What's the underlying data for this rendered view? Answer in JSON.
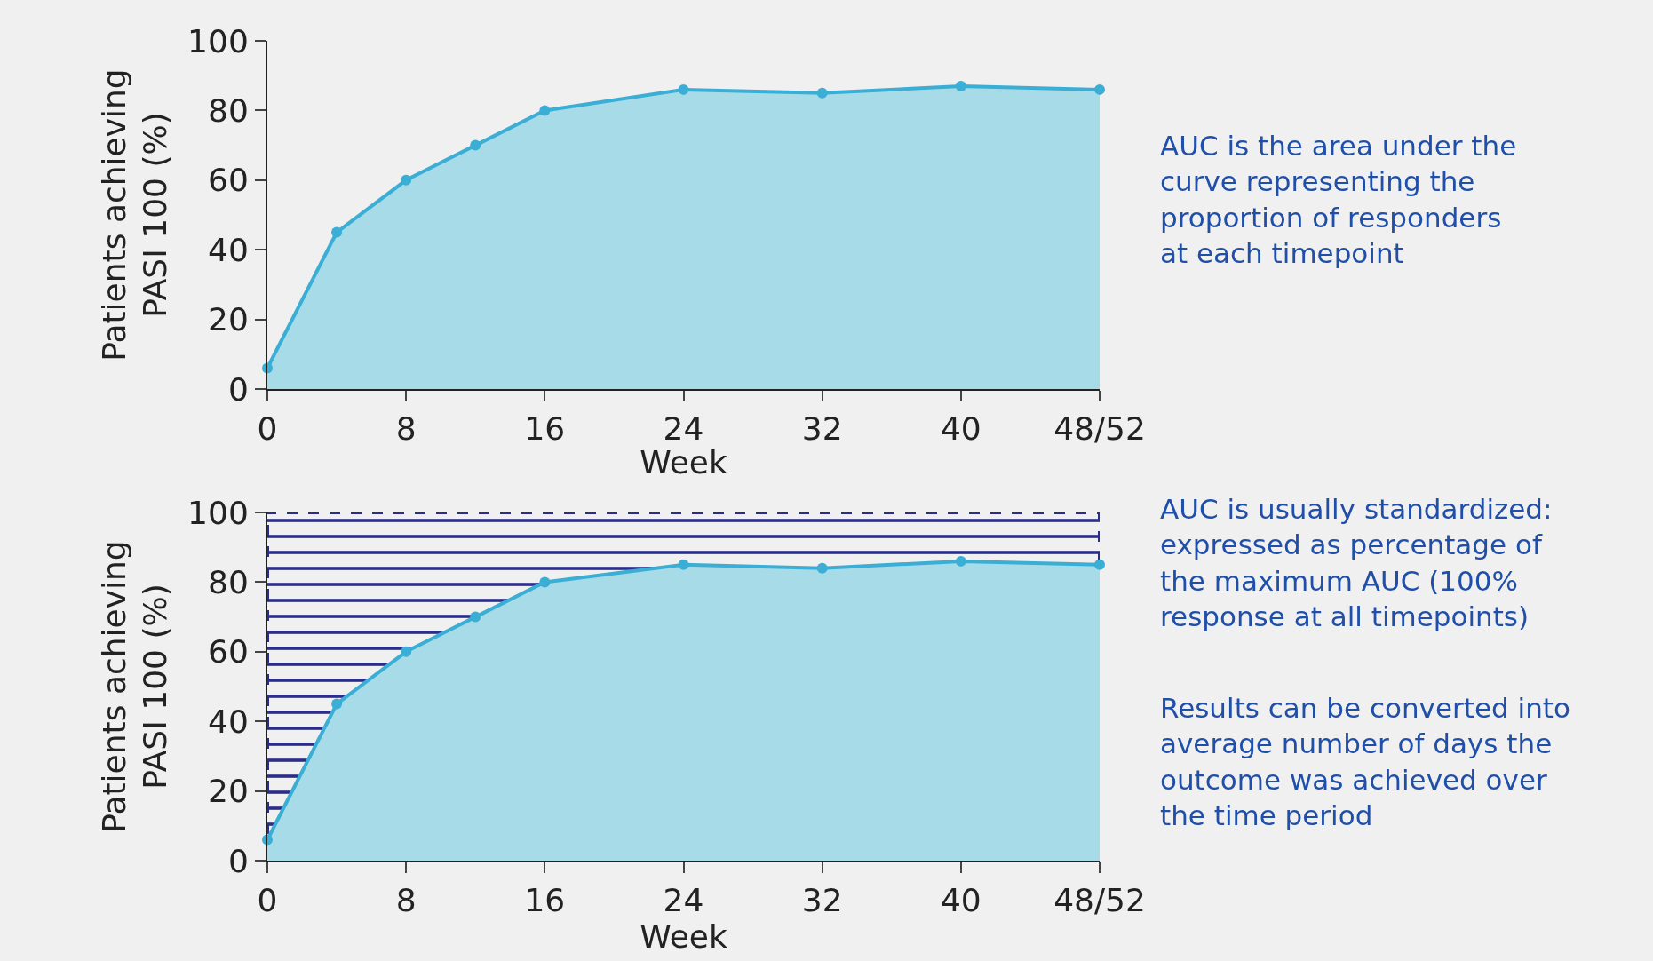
{
  "chart_data": [
    {
      "type": "area",
      "xlabel": "Week",
      "ylabel": "Patients achieving\nPASI 100 (%)",
      "x": [
        0,
        4,
        8,
        12,
        16,
        24,
        32,
        40,
        48
      ],
      "series": [
        {
          "color": "#3aaed4",
          "values": [
            6,
            45,
            60,
            70,
            80,
            86,
            85,
            87,
            86
          ]
        }
      ],
      "xlim": [
        0,
        48
      ],
      "xticks": [
        0,
        8,
        16,
        24,
        32,
        40,
        {
          "value": 48,
          "label": "48/52"
        }
      ],
      "ylim": [
        0,
        100
      ],
      "yticks": [
        0,
        20,
        40,
        60,
        80,
        100
      ],
      "marker": "circle",
      "grid": false,
      "annotations": [
        "AUC is the area under the\ncurve representing the\nproportion of responders\nat each timepoint"
      ]
    },
    {
      "type": "area",
      "xlabel": "Week",
      "ylabel": "Patients achieving\nPASI 100 (%)",
      "x": [
        0,
        4,
        8,
        12,
        16,
        24,
        32,
        40,
        48
      ],
      "series": [
        {
          "color": "#3aaed4",
          "values": [
            6,
            45,
            60,
            70,
            80,
            85,
            84,
            86,
            85
          ]
        }
      ],
      "xlim": [
        0,
        48
      ],
      "xticks": [
        0,
        8,
        16,
        24,
        32,
        40,
        {
          "value": 48,
          "label": "48/52"
        }
      ],
      "ylim": [
        0,
        100
      ],
      "yticks": [
        0,
        20,
        40,
        60,
        80,
        100
      ],
      "marker": "circle",
      "grid": false,
      "bands": [
        {
          "axis": "y",
          "from": 0,
          "to": 100,
          "color": "#2b2d8a"
        }
      ],
      "annotations": [
        "AUC is usually standardized:\nexpressed as percentage of\nthe maximum AUC (100%\nresponse at all timepoints)",
        "Results can be converted into\naverage number of days the\noutcome was achieved over\nthe time period"
      ]
    }
  ]
}
